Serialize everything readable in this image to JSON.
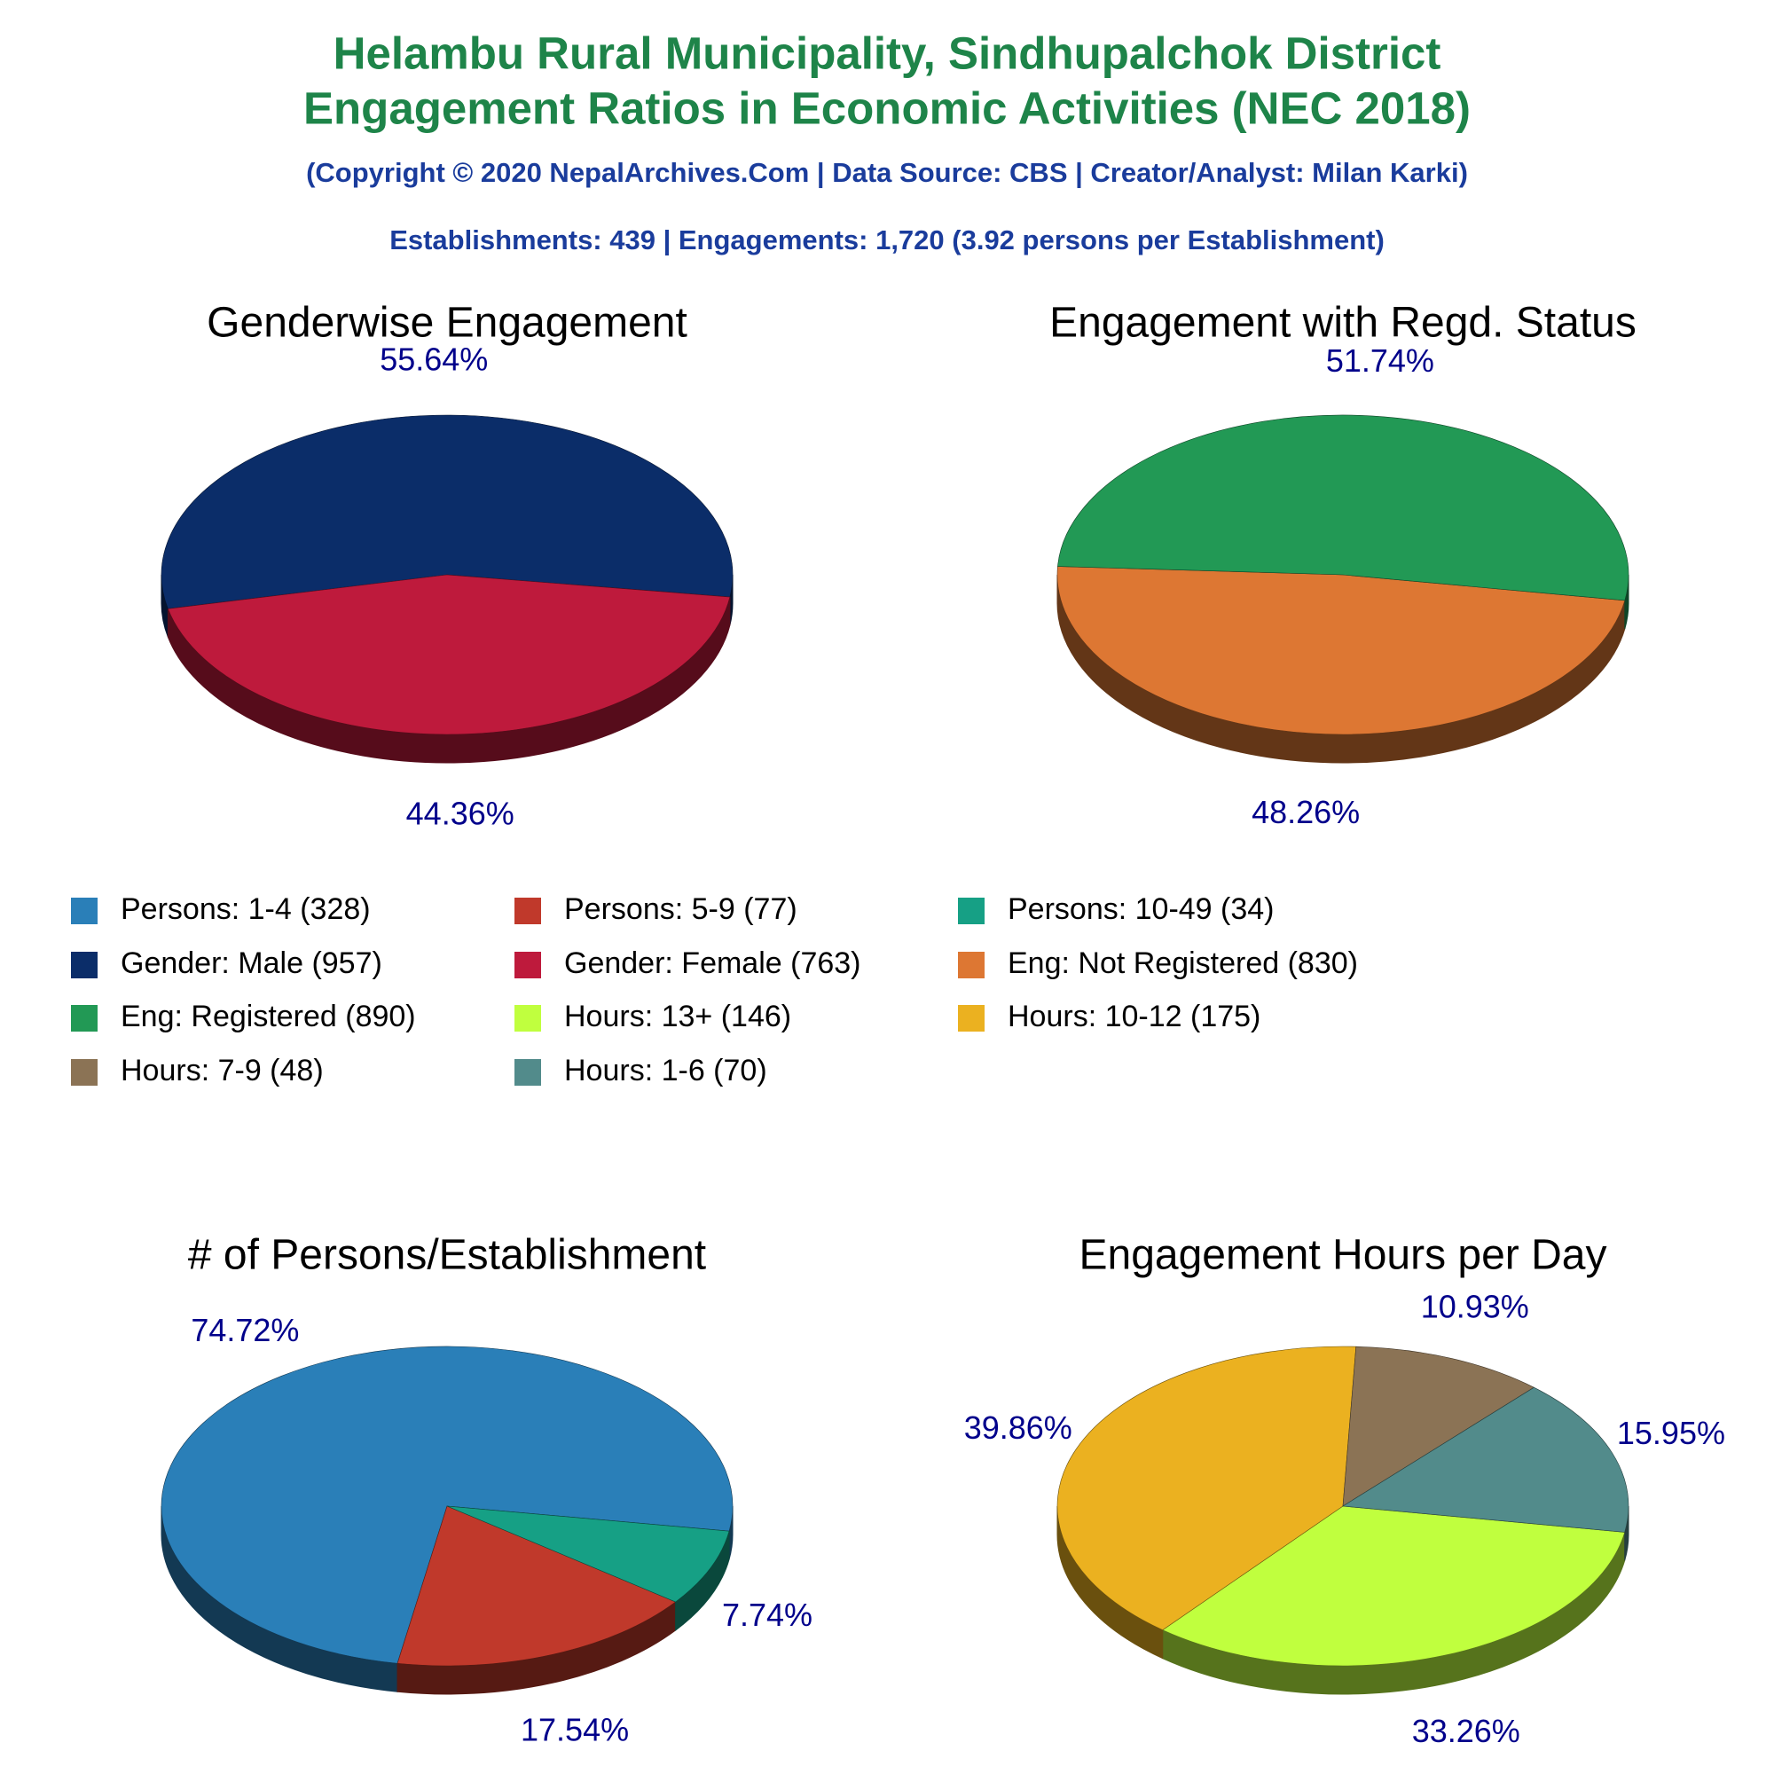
{
  "title": [
    "Helambu Rural Municipality, Sindhupalchok District",
    "Engagement Ratios in Economic Activities (NEC 2018)"
  ],
  "subtitle": "(Copyright © 2020 NepalArchives.Com | Data Source: CBS | Creator/Analyst: Milan Karki)",
  "summary": "Establishments: 439 | Engagements: 1,720 (3.92 persons per Establishment)",
  "chart_data": [
    {
      "type": "pie",
      "title": "# of Persons/Establishment",
      "categories": [
        "Persons: 1-4 (328)",
        "Persons: 5-9 (77)",
        "Persons: 10-49 (34)"
      ],
      "values": [
        74.72,
        17.54,
        7.74
      ],
      "value_labels": [
        "74.72%",
        "17.54%",
        "7.74%"
      ],
      "colors": [
        "#2a7fb8",
        "#c0392b",
        "#16a085"
      ]
    },
    {
      "type": "pie",
      "title": "Genderwise Engagement",
      "categories": [
        "Gender: Male (957)",
        "Gender: Female (763)"
      ],
      "values": [
        55.64,
        44.36
      ],
      "value_labels": [
        "55.64%",
        "44.36%"
      ],
      "colors": [
        "#0b2d69",
        "#be1a3c"
      ]
    },
    {
      "type": "pie",
      "title": "Engagement with Regd. Status",
      "categories": [
        "Eng: Not Registered (830)",
        "Eng: Registered (890)"
      ],
      "values": [
        48.26,
        51.74
      ],
      "value_labels": [
        "48.26%",
        "51.74%"
      ],
      "colors": [
        "#dd7733",
        "#229955"
      ]
    },
    {
      "type": "pie",
      "title": "Engagement Hours per Day",
      "categories": [
        "Hours: 13+ (146)",
        "Hours: 10-12 (175)",
        "Hours: 7-9 (48)",
        "Hours: 1-6 (70)"
      ],
      "values": [
        33.26,
        39.86,
        10.93,
        15.95
      ],
      "value_labels": [
        "33.26%",
        "39.86%",
        "10.93%",
        "15.95%"
      ],
      "colors": [
        "#c0ff3e",
        "#ebb120",
        "#8b7355",
        "#528b8b"
      ]
    }
  ]
}
